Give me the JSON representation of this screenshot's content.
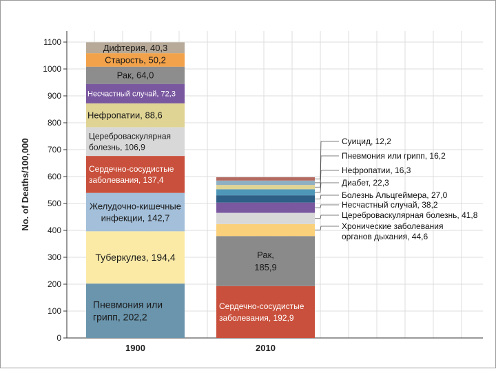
{
  "chart_data": {
    "type": "bar",
    "stacked": true,
    "title": "",
    "xlabel": "",
    "ylabel": "No. of Deaths/100,000",
    "ylim": [
      0,
      1100
    ],
    "yticks": [
      0,
      100,
      200,
      300,
      400,
      500,
      600,
      700,
      800,
      900,
      1000,
      1100
    ],
    "grid": true,
    "categories": [
      "1900",
      "2010"
    ],
    "bars": [
      {
        "category": "1900",
        "segments": [
          {
            "label": "Пневмония или грипп, 202,2",
            "value": 202.2,
            "color": "#6a95ad"
          },
          {
            "label": "Туберкулез, 194,4",
            "value": 194.4,
            "color": "#faeaa6"
          },
          {
            "label": "Желудочно-кишечные инфекции, 142,7",
            "value": 142.7,
            "color": "#a3bfd9"
          },
          {
            "label": "Сердечно-сосудистые заболевания, 137,4",
            "value": 137.4,
            "color": "#c9503c"
          },
          {
            "label": "Цереброваскулярная болезнь, 106,9",
            "value": 106.9,
            "color": "#d8d8d8"
          },
          {
            "label": "Нефропатии, 88,6",
            "value": 88.6,
            "color": "#dfd494"
          },
          {
            "label": "Несчастный случай, 72,3",
            "value": 72.3,
            "color": "#7a58a0"
          },
          {
            "label": "Рак, 64,0",
            "value": 64.0,
            "color": "#8d8d8d"
          },
          {
            "label": "Старость, 50,2",
            "value": 50.2,
            "color": "#f2a24a"
          },
          {
            "label": "Дифтерия, 40,3",
            "value": 40.3,
            "color": "#b8aa98"
          }
        ]
      },
      {
        "category": "2010",
        "segments": [
          {
            "label": "Сердечно-сосудистые заболевания, 192,9",
            "value": 192.9,
            "color": "#c9503c"
          },
          {
            "label": "Рак, 185,9",
            "value": 185.9,
            "color": "#8a8a8a"
          },
          {
            "label": "Хронические заболевания органов дыхания, 44,6",
            "value": 44.6,
            "color": "#fbd07a"
          },
          {
            "label": "Цереброваскулярная болезнь, 41,8",
            "value": 41.8,
            "color": "#d8d8d8"
          },
          {
            "label": "Несчастный случай, 38,2",
            "value": 38.2,
            "color": "#7a58a0"
          },
          {
            "label": "Болезнь Альцгеймера, 27,0",
            "value": 27.0,
            "color": "#2e5f86"
          },
          {
            "label": "Диабет, 22,3",
            "value": 22.3,
            "color": "#4f97b8"
          },
          {
            "label": "Нефропатии, 16,3",
            "value": 16.3,
            "color": "#dfd494"
          },
          {
            "label": "Пневмония или грипп, 16,2",
            "value": 16.2,
            "color": "#8fb0c2"
          },
          {
            "label": "Суицид, 12,2",
            "value": 12.2,
            "color": "#b46a60"
          }
        ]
      }
    ]
  }
}
